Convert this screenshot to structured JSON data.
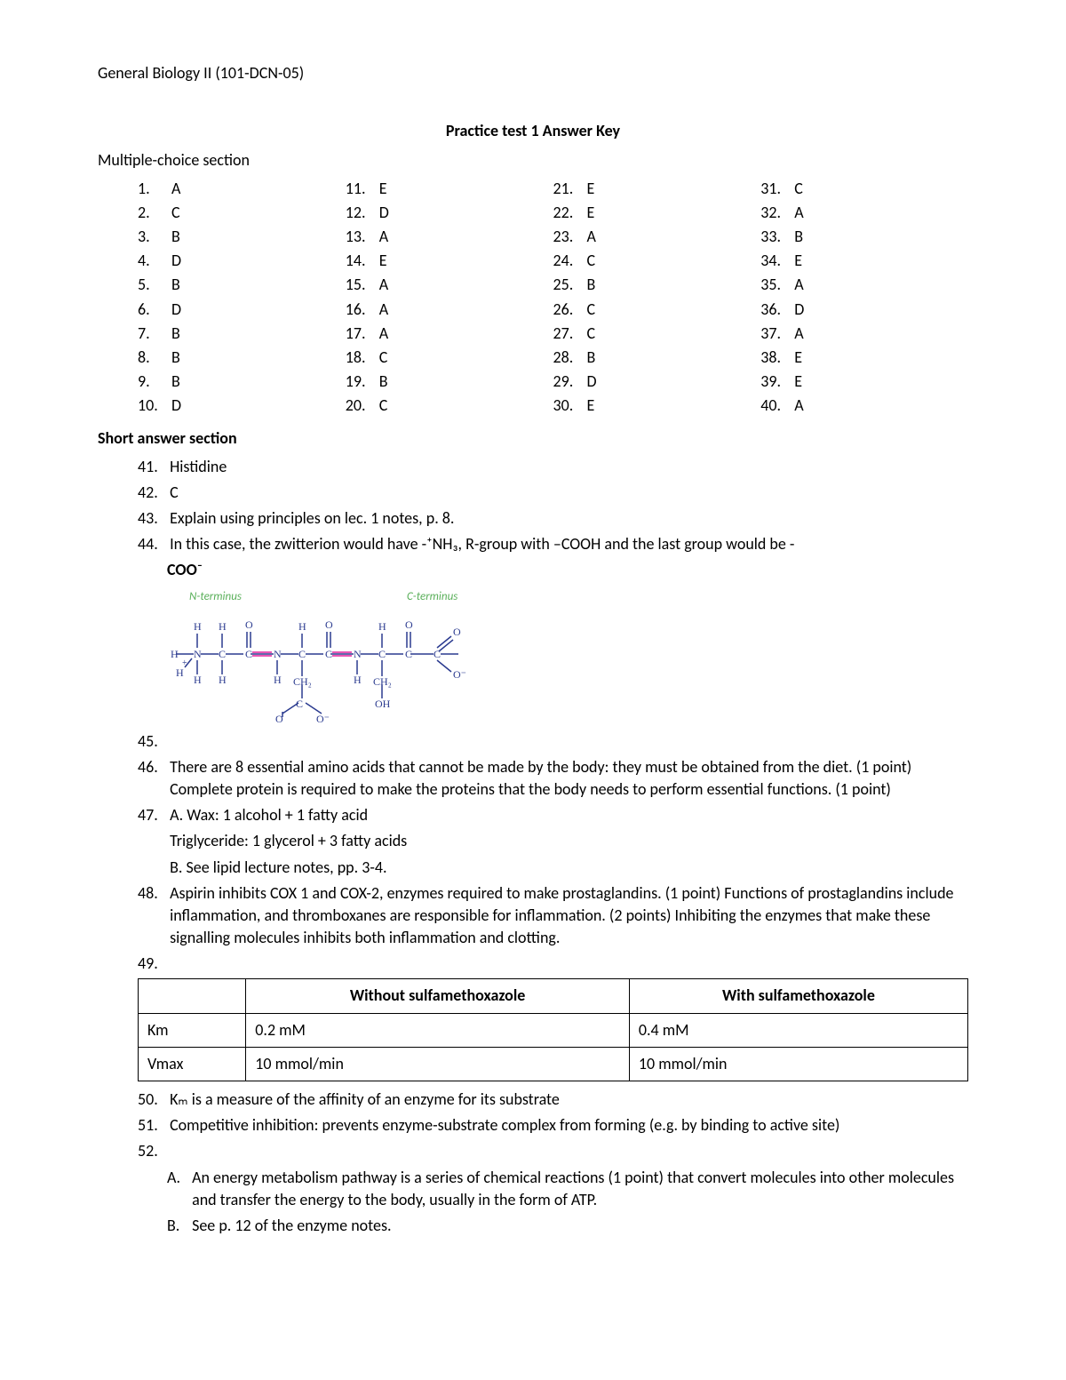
{
  "course_header": "General Biology II (101-DCN-05)",
  "title": "Practice test 1 Answer Key",
  "mc_label": "Multiple-choice section",
  "mc": {
    "col1": [
      {
        "n": "1.",
        "a": "A"
      },
      {
        "n": "2.",
        "a": "C"
      },
      {
        "n": "3.",
        "a": "B"
      },
      {
        "n": "4.",
        "a": "D"
      },
      {
        "n": "5.",
        "a": "B"
      },
      {
        "n": "6.",
        "a": "D"
      },
      {
        "n": "7.",
        "a": "B"
      },
      {
        "n": "8.",
        "a": "B"
      },
      {
        "n": "9.",
        "a": "B"
      },
      {
        "n": "10.",
        "a": "D"
      }
    ],
    "col2": [
      {
        "n": "11.",
        "a": "E"
      },
      {
        "n": "12.",
        "a": "D"
      },
      {
        "n": "13.",
        "a": "A"
      },
      {
        "n": "14.",
        "a": "E"
      },
      {
        "n": "15.",
        "a": "A"
      },
      {
        "n": "16.",
        "a": "A"
      },
      {
        "n": "17.",
        "a": "A"
      },
      {
        "n": "18.",
        "a": "C"
      },
      {
        "n": "19.",
        "a": "B"
      },
      {
        "n": "20.",
        "a": "C"
      }
    ],
    "col3": [
      {
        "n": "21.",
        "a": "E"
      },
      {
        "n": "22.",
        "a": "E"
      },
      {
        "n": "23.",
        "a": "A"
      },
      {
        "n": "24.",
        "a": "C"
      },
      {
        "n": "25.",
        "a": "B"
      },
      {
        "n": "26.",
        "a": "C"
      },
      {
        "n": "27.",
        "a": "C"
      },
      {
        "n": "28.",
        "a": "B"
      },
      {
        "n": "29.",
        "a": "D"
      },
      {
        "n": "30.",
        "a": "E"
      }
    ],
    "col4": [
      {
        "n": "31.",
        "a": "C"
      },
      {
        "n": "32.",
        "a": "A"
      },
      {
        "n": "33.",
        "a": "B"
      },
      {
        "n": "34.",
        "a": "E"
      },
      {
        "n": "35.",
        "a": "A"
      },
      {
        "n": "36.",
        "a": "D"
      },
      {
        "n": "37.",
        "a": "A"
      },
      {
        "n": "38.",
        "a": "E"
      },
      {
        "n": "39.",
        "a": "E"
      },
      {
        "n": "40.",
        "a": "A"
      }
    ]
  },
  "sa_label": "Short answer section",
  "sa": {
    "q41": {
      "n": "41.",
      "t": "Histidine"
    },
    "q42": {
      "n": "42.",
      "t": "C"
    },
    "q43": {
      "n": "43.",
      "t": "Explain using principles on lec. 1 notes, p. 8."
    },
    "q44": {
      "n": "44.",
      "t": "In this case, the zwitterion would have -⁺NH₃, R-group with –COOH and the last group would be -"
    },
    "q44_coo": "COO⁻",
    "q45": {
      "n": "45."
    },
    "q46": {
      "n": "46.",
      "t": "There are 8 essential amino acids that cannot be made by the body: they must be obtained from the diet. (1 point) Complete protein is required to make the proteins that the body needs to perform essential functions. (1 point)"
    },
    "q47": {
      "n": "47.",
      "t": "A. Wax: 1 alcohol + 1 fatty acid"
    },
    "q47b": "Triglyceride: 1 glycerol + 3 fatty acids",
    "q47c": "B. See lipid lecture notes, pp. 3-4.",
    "q48": {
      "n": "48.",
      "t": "Aspirin inhibits COX 1 and COX-2, enzymes required to make prostaglandins. (1 point) Functions of prostaglandins include inflammation, and thromboxanes are responsible for inflammation. (2 points) Inhibiting the enzymes that make these signalling molecules inhibits both inflammation and clotting."
    },
    "q49": {
      "n": "49."
    },
    "q50": {
      "n": "50.",
      "t": "Kₘ is a measure of the affinity of an enzyme for its substrate"
    },
    "q51": {
      "n": "51.",
      "t": "Competitive inhibition: prevents enzyme-substrate complex from forming (e.g. by binding to active site)"
    },
    "q52": {
      "n": "52."
    },
    "q52a": {
      "l": "A.",
      "t": "An energy metabolism pathway is a series of chemical reactions (1 point) that convert molecules into other molecules and transfer the energy to the body, usually in the form of ATP."
    },
    "q52b": {
      "l": "B.",
      "t": "See p. 12 of the enzyme notes."
    }
  },
  "diagram": {
    "n_label": "N-terminus",
    "c_label": "C-terminus",
    "label_color": "#5bb05b",
    "line_color": "#2a3a8f",
    "pink": "#e856b5"
  },
  "table": {
    "h_without": "Without sulfamethoxazole",
    "h_with": "With sulfamethoxazole",
    "r1_label": "Km",
    "r1_without": "0.2 mM",
    "r1_with": "0.4 mM",
    "r2_label": "Vmax",
    "r2_without": "10 mmol/min",
    "r2_with": "10 mmol/min"
  }
}
